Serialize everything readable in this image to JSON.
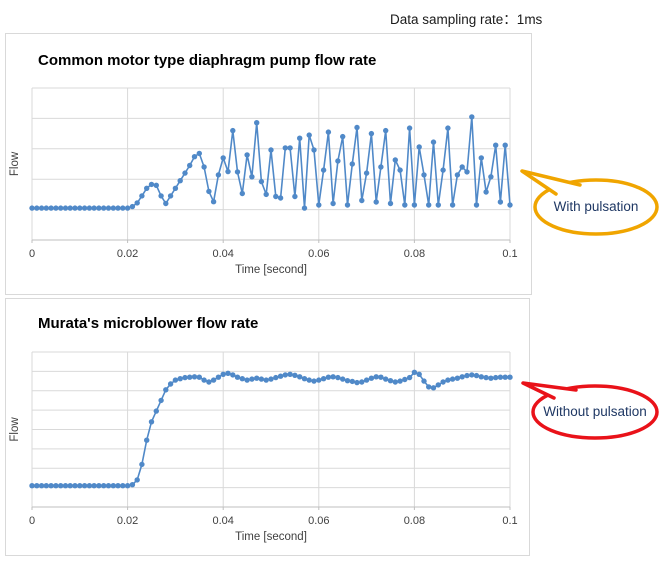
{
  "header": {
    "note": "Data sampling rate：1ms"
  },
  "theme": {
    "line_color": "#5089C8",
    "grid_color": "#d9d9d9",
    "axis_color": "#bfbfbf",
    "tick_text_color": "#3f3f3f",
    "bubble_text_color": "#1F3864"
  },
  "bubbles": {
    "with": {
      "label": "With pulsation",
      "color": "#F0A500"
    },
    "without": {
      "label": "Without pulsation",
      "color": "#E91219"
    }
  },
  "chart_data": [
    {
      "type": "line",
      "title": "Common motor type diaphragm pump flow rate",
      "xlabel": "Time [second]",
      "ylabel": "Flow",
      "x_ticks": [
        "0",
        "0.02",
        "0.04",
        "0.06",
        "0.08",
        "0.1"
      ],
      "x_start": 0,
      "x_step": 0.001,
      "xlim": [
        0,
        0.1
      ],
      "ylim": [
        0,
        5
      ],
      "grid": true,
      "legend": "none",
      "markers": true,
      "line_color": "#5089C8",
      "values": [
        1.05,
        1.05,
        1.05,
        1.05,
        1.05,
        1.05,
        1.05,
        1.05,
        1.05,
        1.05,
        1.05,
        1.05,
        1.05,
        1.05,
        1.05,
        1.05,
        1.05,
        1.05,
        1.05,
        1.05,
        1.05,
        1.1,
        1.22,
        1.45,
        1.7,
        1.83,
        1.8,
        1.45,
        1.2,
        1.45,
        1.7,
        1.95,
        2.2,
        2.45,
        2.74,
        2.85,
        2.4,
        1.6,
        1.26,
        2.14,
        2.7,
        2.25,
        3.6,
        2.24,
        1.53,
        2.8,
        2.08,
        3.86,
        1.92,
        1.5,
        2.96,
        1.43,
        1.38,
        3.03,
        3.03,
        1.43,
        3.35,
        1.05,
        3.45,
        2.96,
        1.15,
        2.3,
        3.55,
        1.2,
        2.6,
        3.4,
        1.15,
        2.5,
        3.7,
        1.3,
        2.2,
        3.5,
        1.25,
        2.4,
        3.6,
        1.2,
        2.63,
        2.3,
        1.15,
        3.68,
        1.15,
        3.06,
        2.14,
        1.15,
        3.22,
        1.15,
        2.3,
        3.68,
        1.15,
        2.14,
        2.4,
        2.24,
        4.05,
        1.15,
        2.7,
        1.58,
        2.08,
        3.12,
        1.25,
        3.12,
        1.15
      ]
    },
    {
      "type": "line",
      "title": "Murata's microblower flow rate",
      "xlabel": "Time [second]",
      "ylabel": "Flow",
      "x_ticks": [
        "0",
        "0.02",
        "0.04",
        "0.06",
        "0.08",
        "0.1"
      ],
      "x_start": 0,
      "x_step": 0.001,
      "xlim": [
        0,
        0.1
      ],
      "ylim": [
        0,
        8
      ],
      "grid": true,
      "legend": "none",
      "markers": true,
      "line_color": "#5089C8",
      "values": [
        1.1,
        1.1,
        1.1,
        1.1,
        1.1,
        1.1,
        1.1,
        1.1,
        1.1,
        1.1,
        1.1,
        1.1,
        1.1,
        1.1,
        1.1,
        1.1,
        1.1,
        1.1,
        1.1,
        1.1,
        1.1,
        1.15,
        1.4,
        2.2,
        3.45,
        4.4,
        4.95,
        5.5,
        6.05,
        6.35,
        6.55,
        6.62,
        6.68,
        6.7,
        6.72,
        6.7,
        6.55,
        6.45,
        6.55,
        6.7,
        6.85,
        6.9,
        6.82,
        6.7,
        6.62,
        6.55,
        6.6,
        6.65,
        6.6,
        6.55,
        6.6,
        6.68,
        6.75,
        6.82,
        6.85,
        6.8,
        6.72,
        6.62,
        6.55,
        6.5,
        6.55,
        6.62,
        6.7,
        6.72,
        6.68,
        6.6,
        6.52,
        6.48,
        6.42,
        6.45,
        6.55,
        6.65,
        6.72,
        6.7,
        6.6,
        6.52,
        6.45,
        6.5,
        6.58,
        6.68,
        6.95,
        6.85,
        6.5,
        6.2,
        6.15,
        6.3,
        6.45,
        6.55,
        6.6,
        6.65,
        6.72,
        6.78,
        6.82,
        6.78,
        6.72,
        6.68,
        6.65,
        6.68,
        6.7,
        6.7,
        6.7
      ]
    }
  ]
}
